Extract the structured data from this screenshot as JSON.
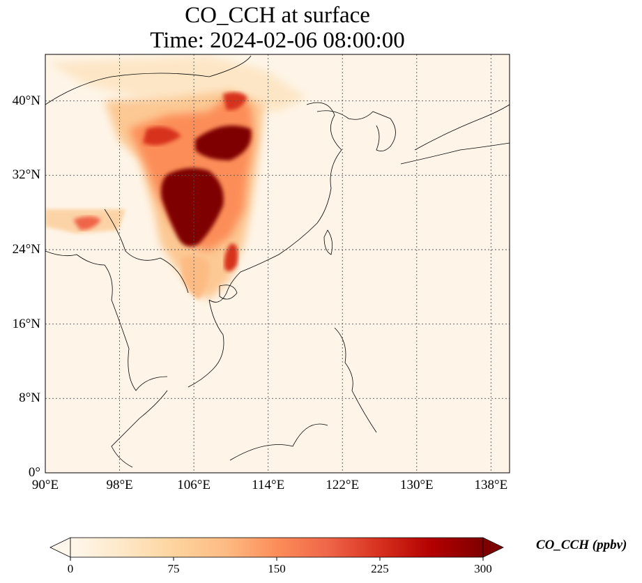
{
  "title": {
    "line1": "CO_CCH at surface",
    "line2": "Time: 2024-02-06 08:00:00"
  },
  "map": {
    "lon_range": [
      90,
      140
    ],
    "lat_range": [
      0,
      45
    ],
    "gridlines": "dotted",
    "lat_ticks": [
      {
        "value": 0,
        "label": "0°"
      },
      {
        "value": 8,
        "label": "8°N"
      },
      {
        "value": 16,
        "label": "16°N"
      },
      {
        "value": 24,
        "label": "24°N"
      },
      {
        "value": 32,
        "label": "32°N"
      },
      {
        "value": 40,
        "label": "40°N"
      }
    ],
    "lon_ticks": [
      {
        "value": 90,
        "label": "90°E"
      },
      {
        "value": 98,
        "label": "98°E"
      },
      {
        "value": 106,
        "label": "106°E"
      },
      {
        "value": 114,
        "label": "114°E"
      },
      {
        "value": 122,
        "label": "122°E"
      },
      {
        "value": 130,
        "label": "130°E"
      },
      {
        "value": 138,
        "label": "138°E"
      }
    ]
  },
  "colorbar": {
    "label": "CO_CCH (ppbv)",
    "colormap": "OrRd",
    "range": [
      0,
      300
    ],
    "extend": "both",
    "ticks": [
      "0",
      "75",
      "150",
      "225",
      "300"
    ],
    "colors": [
      "#fff7ec",
      "#fee8c8",
      "#fdd49e",
      "#fdbb84",
      "#fc8d59",
      "#ef6548",
      "#d7301f",
      "#b30000",
      "#7f0000"
    ]
  }
}
